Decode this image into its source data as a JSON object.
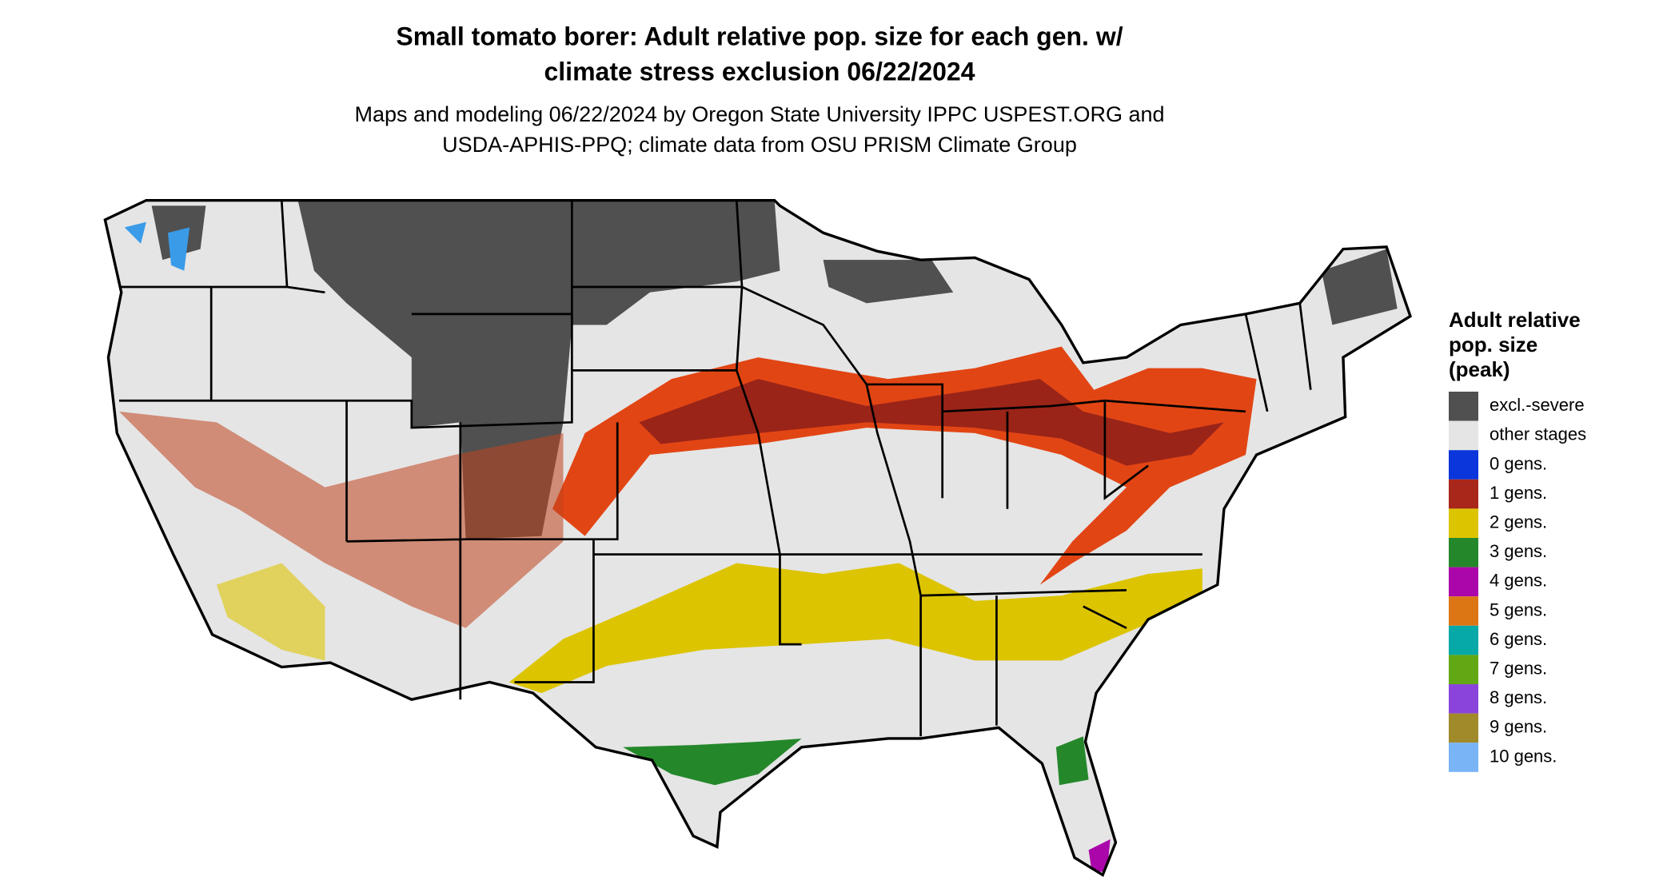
{
  "header": {
    "title": [
      "Small tomato borer: Adult relative pop. size for each gen. w/",
      "climate stress exclusion 06/22/2024"
    ],
    "subtitle": [
      "Maps and modeling 06/22/2024 by Oregon State University IPPC USPEST.ORG and",
      "USDA-APHIS-PPQ; climate data from OSU PRISM Climate Group"
    ]
  },
  "legend": {
    "title": [
      "Adult relative",
      "pop. size",
      "(peak)"
    ],
    "items": [
      {
        "label": "excl.-severe",
        "color": "#505050"
      },
      {
        "label": "other stages",
        "color": "#e5e5e5"
      },
      {
        "label": "0 gens.",
        "color": "#0a36dc"
      },
      {
        "label": "1 gens.",
        "color": "#a8261a"
      },
      {
        "label": "2 gens.",
        "color": "#dcc400"
      },
      {
        "label": "3 gens.",
        "color": "#24882a"
      },
      {
        "label": "4 gens.",
        "color": "#aa06aa"
      },
      {
        "label": "5 gens.",
        "color": "#dc7614"
      },
      {
        "label": "6 gens.",
        "color": "#06a8a8"
      },
      {
        "label": "7 gens.",
        "color": "#62a814"
      },
      {
        "label": "8 gens.",
        "color": "#8a44dc"
      },
      {
        "label": "9 gens.",
        "color": "#a08a2a"
      },
      {
        "label": "10 gens.",
        "color": "#78b4f6"
      }
    ]
  }
}
